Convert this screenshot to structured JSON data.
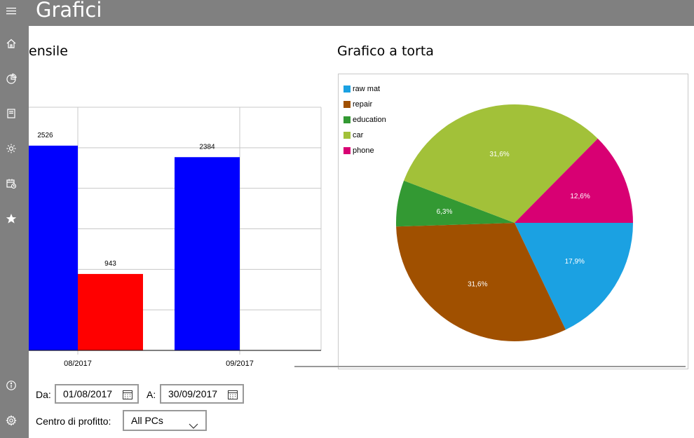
{
  "app": {
    "title": "Grafici"
  },
  "sidebar": {
    "items": [
      {
        "icon": "home-icon"
      },
      {
        "icon": "pie-chart-icon"
      },
      {
        "icon": "book-icon"
      },
      {
        "icon": "settings-gear-icon"
      },
      {
        "icon": "calendar-clock-icon"
      },
      {
        "icon": "star-icon"
      }
    ],
    "bottom": [
      {
        "icon": "info-icon"
      },
      {
        "icon": "settings-icon"
      }
    ]
  },
  "bar_section": {
    "title": "ensile"
  },
  "pie_section": {
    "title": "Grafico a torta"
  },
  "form": {
    "from_label": "Da:",
    "from_value": "01/08/2017",
    "to_label": "A:",
    "to_value": "30/09/2017",
    "profit_center_label": "Centro di profitto:",
    "profit_center_value": "All PCs"
  },
  "colors": {
    "blue": "#0000ff",
    "red": "#ff0000",
    "raw_mat": "#1ba1e2",
    "repair": "#a05000",
    "education": "#339933",
    "car": "#a2c139",
    "phone": "#d80073"
  },
  "chart_data": [
    {
      "type": "bar",
      "categories": [
        "08/2017",
        "09/2017"
      ],
      "series": [
        {
          "values": [
            2526,
            2384
          ],
          "color": "#0000ff"
        },
        {
          "values": [
            943,
            null
          ],
          "color": "#ff0000"
        }
      ],
      "ylim": [
        0,
        3000
      ],
      "grid": true
    },
    {
      "type": "pie",
      "legend": [
        "raw mat",
        "repair",
        "education",
        "car",
        "phone"
      ],
      "values": [
        17.9,
        31.6,
        6.3,
        31.6,
        12.6
      ],
      "labels": [
        "17,9%",
        "31,6%",
        "6,3%",
        "31,6%",
        "12,6%"
      ],
      "colors": [
        "#1ba1e2",
        "#a05000",
        "#339933",
        "#a2c139",
        "#d80073"
      ],
      "legend_position": "top-left"
    }
  ]
}
